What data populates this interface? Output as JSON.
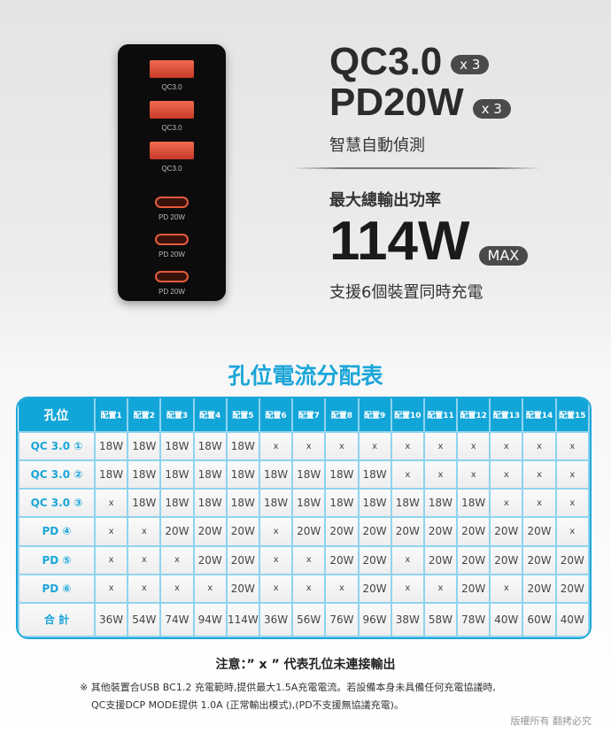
{
  "device": {
    "ports": [
      {
        "type": "usb-a",
        "label": "QC3.0"
      },
      {
        "type": "usb-a",
        "label": "QC3.0"
      },
      {
        "type": "usb-a",
        "label": "QC3.0"
      },
      {
        "type": "usb-c",
        "label": "PD 20W"
      },
      {
        "type": "usb-c",
        "label": "PD 20W"
      },
      {
        "type": "usb-c",
        "label": "PD 20W"
      }
    ]
  },
  "hero": {
    "qc": "QC3.0",
    "qc_count": "x 3",
    "pd": "PD20W",
    "pd_count": "x 3",
    "smart": "智慧自動偵測",
    "max_label": "最大總輸出功率",
    "max_value": "114W",
    "max_badge": "MAX",
    "support": "支援6個裝置同時充電"
  },
  "table": {
    "title": "孔位電流分配表",
    "corner": "孔位",
    "columns": [
      "配置1",
      "配置2",
      "配置3",
      "配置4",
      "配置5",
      "配置6",
      "配置7",
      "配置8",
      "配置9",
      "配置10",
      "配置11",
      "配置12",
      "配置13",
      "配置14",
      "配置15"
    ],
    "rows": [
      {
        "label": "QC 3.0 ①",
        "cells": [
          "18W",
          "18W",
          "18W",
          "18W",
          "18W",
          "x",
          "x",
          "x",
          "x",
          "x",
          "x",
          "x",
          "x",
          "x",
          "x"
        ]
      },
      {
        "label": "QC 3.0 ②",
        "cells": [
          "18W",
          "18W",
          "18W",
          "18W",
          "18W",
          "18W",
          "18W",
          "18W",
          "18W",
          "x",
          "x",
          "x",
          "x",
          "x",
          "x"
        ]
      },
      {
        "label": "QC 3.0 ③",
        "cells": [
          "x",
          "18W",
          "18W",
          "18W",
          "18W",
          "18W",
          "18W",
          "18W",
          "18W",
          "18W",
          "18W",
          "18W",
          "x",
          "x",
          "x"
        ]
      },
      {
        "label": "PD ④",
        "cells": [
          "x",
          "x",
          "20W",
          "20W",
          "20W",
          "x",
          "20W",
          "20W",
          "20W",
          "20W",
          "20W",
          "20W",
          "20W",
          "20W",
          "x"
        ]
      },
      {
        "label": "PD ⑤",
        "cells": [
          "x",
          "x",
          "x",
          "20W",
          "20W",
          "x",
          "x",
          "20W",
          "20W",
          "x",
          "20W",
          "20W",
          "20W",
          "20W",
          "20W"
        ]
      },
      {
        "label": "PD ⑥",
        "cells": [
          "x",
          "x",
          "x",
          "x",
          "20W",
          "x",
          "x",
          "x",
          "20W",
          "x",
          "x",
          "20W",
          "x",
          "20W",
          "20W"
        ]
      },
      {
        "label": "合 計",
        "cells": [
          "36W",
          "54W",
          "74W",
          "94W",
          "114W",
          "36W",
          "56W",
          "76W",
          "96W",
          "38W",
          "58W",
          "78W",
          "40W",
          "60W",
          "40W"
        ]
      }
    ]
  },
  "note": "注意：” x ” 代表孔位未連接輸出",
  "footnote1": "※ 其他裝置合USB BC1.2 充電範時,提供最大1.5A充電電流。若設備本身未具備任何充電協議時,",
  "footnote2": "QC支援DCP MODE提供 1.0A (正常輸出模式),(PD不支援無協議充電)。",
  "copyright": "版權所有 翻拷必究",
  "colors": {
    "accent": "#1ba6d9",
    "port": "#e55b3e"
  }
}
